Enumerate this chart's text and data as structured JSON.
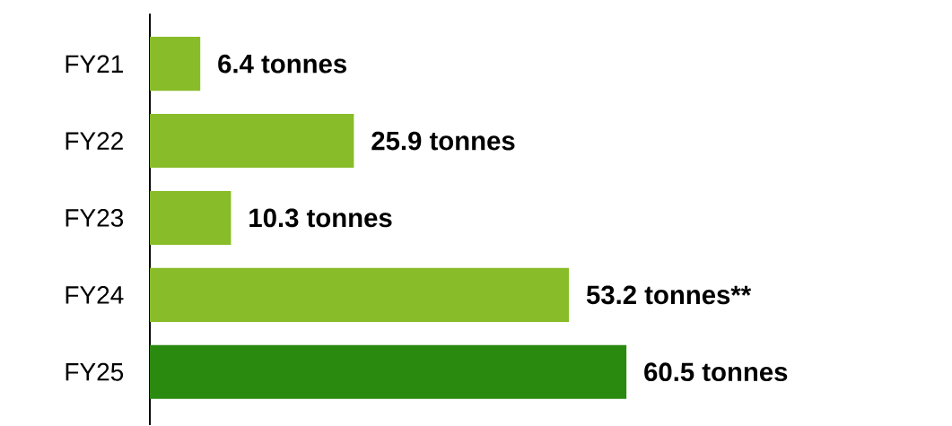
{
  "chart_data": {
    "type": "bar",
    "orientation": "horizontal",
    "categories": [
      "FY21",
      "FY22",
      "FY23",
      "FY24",
      "FY25"
    ],
    "values": [
      6.4,
      25.9,
      10.3,
      53.2,
      60.5
    ],
    "colors": [
      "#88bc28",
      "#88bc28",
      "#88bc28",
      "#88bc28",
      "#2a8a10"
    ],
    "value_labels": [
      "6.4 tonnes",
      "25.9 tonnes",
      "10.3 tonnes",
      "53.2 tonnes**",
      "60.5 tonnes"
    ]
  }
}
